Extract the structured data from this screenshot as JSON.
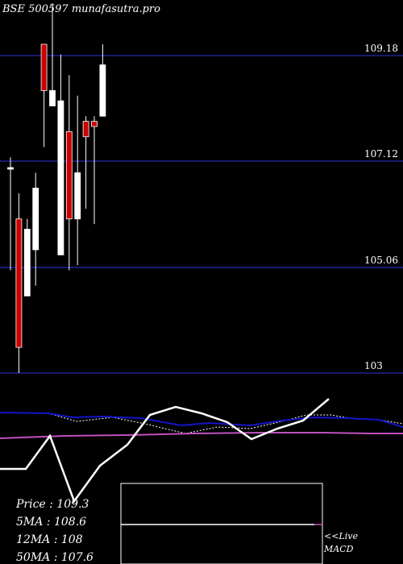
{
  "header": {
    "title": "BSE 500597 munafasutra.pro"
  },
  "colors": {
    "background": "#000000",
    "gridline": "#191970",
    "up_candle": "#ffffff",
    "down_candle": "#cc0000",
    "wick": "#ffffff",
    "ma_blue": "#1414c8",
    "ma_dotted": "#ffffff",
    "ma_magenta": "#c050c0",
    "oscillator": "#ffffff"
  },
  "chart_data": {
    "type": "candlestick",
    "title": "BSE 500597 munafasutra.pro",
    "ylim": [
      103,
      110
    ],
    "price_ticks": [
      109.18,
      107.12,
      105.06,
      103
    ],
    "candles": [
      {
        "open": 107.0,
        "high": 107.2,
        "low": 105.0,
        "close": 107.0
      },
      {
        "open": 106.0,
        "high": 106.5,
        "low": 103.0,
        "close": 103.5
      },
      {
        "open": 104.5,
        "high": 106.0,
        "low": 104.5,
        "close": 105.8
      },
      {
        "open": 105.4,
        "high": 106.9,
        "low": 104.7,
        "close": 106.6
      },
      {
        "open": 109.4,
        "high": 109.4,
        "low": 107.4,
        "close": 108.5
      },
      {
        "open": 108.2,
        "high": 110.2,
        "low": 108.2,
        "close": 108.5
      },
      {
        "open": 105.3,
        "high": 109.2,
        "low": 105.3,
        "close": 108.3
      },
      {
        "open": 107.7,
        "high": 108.8,
        "low": 105.0,
        "close": 106.0
      },
      {
        "open": 106.0,
        "high": 108.4,
        "low": 105.1,
        "close": 106.9
      },
      {
        "open": 107.9,
        "high": 108.0,
        "low": 106.2,
        "close": 107.6
      },
      {
        "open": 107.9,
        "high": 108.0,
        "low": 105.9,
        "close": 107.8
      },
      {
        "open": 108.0,
        "high": 109.4,
        "low": 108.0,
        "close": 109.0
      }
    ],
    "summary": {
      "price": "Price   :  109.3",
      "ma5": "5MA : 108.6",
      "ma12": "12MA : 108",
      "ma50": "50MA : 107.6"
    },
    "macd": {
      "label_live": "<<Live",
      "label_macd": "MACD"
    }
  }
}
